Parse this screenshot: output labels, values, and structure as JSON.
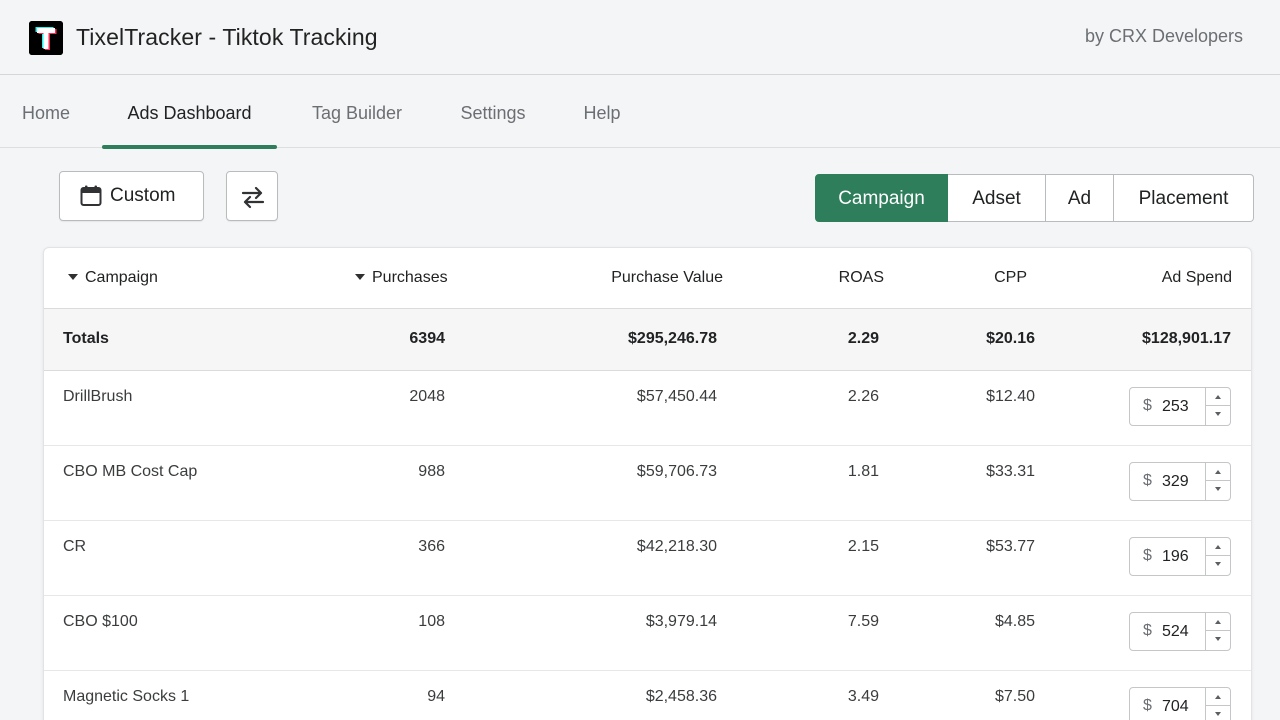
{
  "header": {
    "title": "TixelTracker - Tiktok Tracking",
    "byline": "by CRX Developers",
    "logo_icon": "tiktok-t-logo"
  },
  "nav": {
    "tabs": [
      {
        "label": "Home",
        "active": false
      },
      {
        "label": "Ads Dashboard",
        "active": true
      },
      {
        "label": "Tag Builder",
        "active": false
      },
      {
        "label": "Settings",
        "active": false
      },
      {
        "label": "Help",
        "active": false
      }
    ]
  },
  "toolbar": {
    "date_label": "Custom",
    "date_icon": "calendar-icon",
    "swap_icon": "swap-arrows-icon",
    "levels": [
      {
        "label": "Campaign",
        "active": true
      },
      {
        "label": "Adset",
        "active": false
      },
      {
        "label": "Ad",
        "active": false
      },
      {
        "label": "Placement",
        "active": false
      }
    ]
  },
  "table": {
    "columns": [
      "Campaign",
      "Purchases",
      "Purchase Value",
      "ROAS",
      "CPP",
      "Ad Spend"
    ],
    "totals": {
      "label": "Totals",
      "purchases": "6394",
      "purchase_value": "$295,246.78",
      "roas": "2.29",
      "cpp": "$20.16",
      "ad_spend": "$128,901.17"
    },
    "currency_symbol": "$",
    "rows": [
      {
        "campaign": "DrillBrush",
        "purchases": "2048",
        "purchase_value": "$57,450.44",
        "roas": "2.26",
        "cpp": "$12.40",
        "ad_spend": "253"
      },
      {
        "campaign": "CBO MB Cost Cap",
        "purchases": "988",
        "purchase_value": "$59,706.73",
        "roas": "1.81",
        "cpp": "$33.31",
        "ad_spend": "329"
      },
      {
        "campaign": "CR",
        "purchases": "366",
        "purchase_value": "$42,218.30",
        "roas": "2.15",
        "cpp": "$53.77",
        "ad_spend": "196"
      },
      {
        "campaign": "CBO $100",
        "purchases": "108",
        "purchase_value": "$3,979.14",
        "roas": "7.59",
        "cpp": "$4.85",
        "ad_spend": "524"
      },
      {
        "campaign": "Magnetic Socks 1",
        "purchases": "94",
        "purchase_value": "$2,458.36",
        "roas": "3.49",
        "cpp": "$7.50",
        "ad_spend": "704"
      }
    ]
  },
  "colors": {
    "accent": "#2e7d5b",
    "background": "#f4f5f6"
  }
}
